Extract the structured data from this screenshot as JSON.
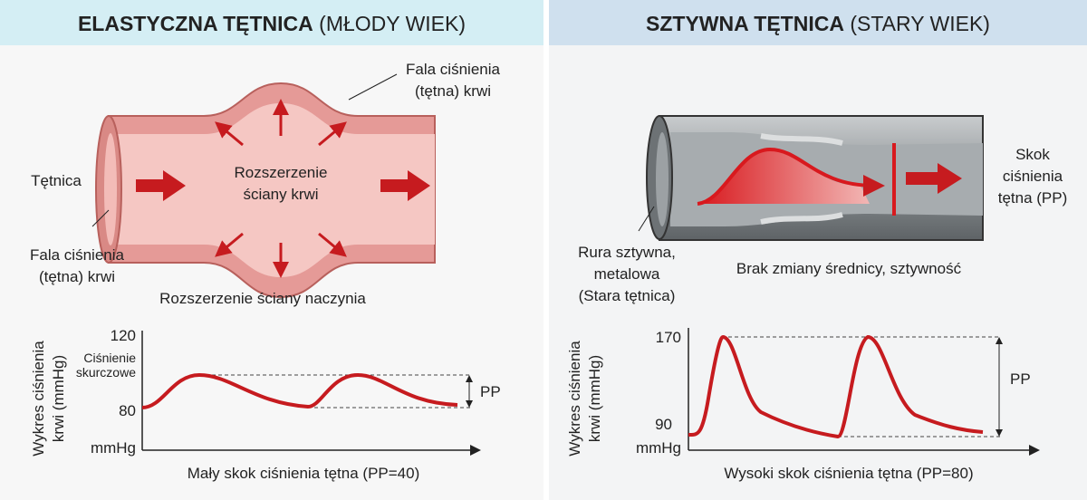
{
  "left": {
    "title_bold": "ELASTYCZNA TĘTNICA",
    "title_rest": "(MŁODY WIEK)",
    "label_artery": "Tętnica",
    "label_wave_top": [
      "Fala ciśnienia",
      "(tętna) krwi"
    ],
    "label_center": [
      "Rozszerzenie",
      "ściany krwi"
    ],
    "label_wave_bottom": [
      "Fala ciśnienia",
      "(tętna) krwi"
    ],
    "caption": "Rozszerzenie ściany naczynia",
    "graph": {
      "y_label": [
        "Wykres ciśnienia",
        "krwi (mmHg)"
      ],
      "tick_top": 120,
      "tick_bottom": 80,
      "systolic": [
        "Ciśnienie",
        "skurczowe"
      ],
      "unit": "mmHg",
      "pp": "PP",
      "caption": "Mały skok ciśnienia tętna (PP=40)"
    }
  },
  "right": {
    "title_bold": "SZTYWNA TĘTNICA",
    "title_rest": "(STARY WIEK)",
    "label_jump": [
      "Skok",
      "ciśnienia",
      "tętna (PP)"
    ],
    "label_pipe": [
      "Rura sztywna,",
      "metalowa",
      "(Stara tętnica)"
    ],
    "label_center": "Brak zmiany średnicy, sztywność",
    "graph": {
      "y_label": [
        "Wykres ciśnienia",
        "krwi (mmHg)"
      ],
      "tick_top": 170,
      "tick_bottom": 90,
      "unit": "mmHg",
      "pp": "PP",
      "caption": "Wysoki skok ciśnienia tętna (PP=80)"
    }
  }
}
